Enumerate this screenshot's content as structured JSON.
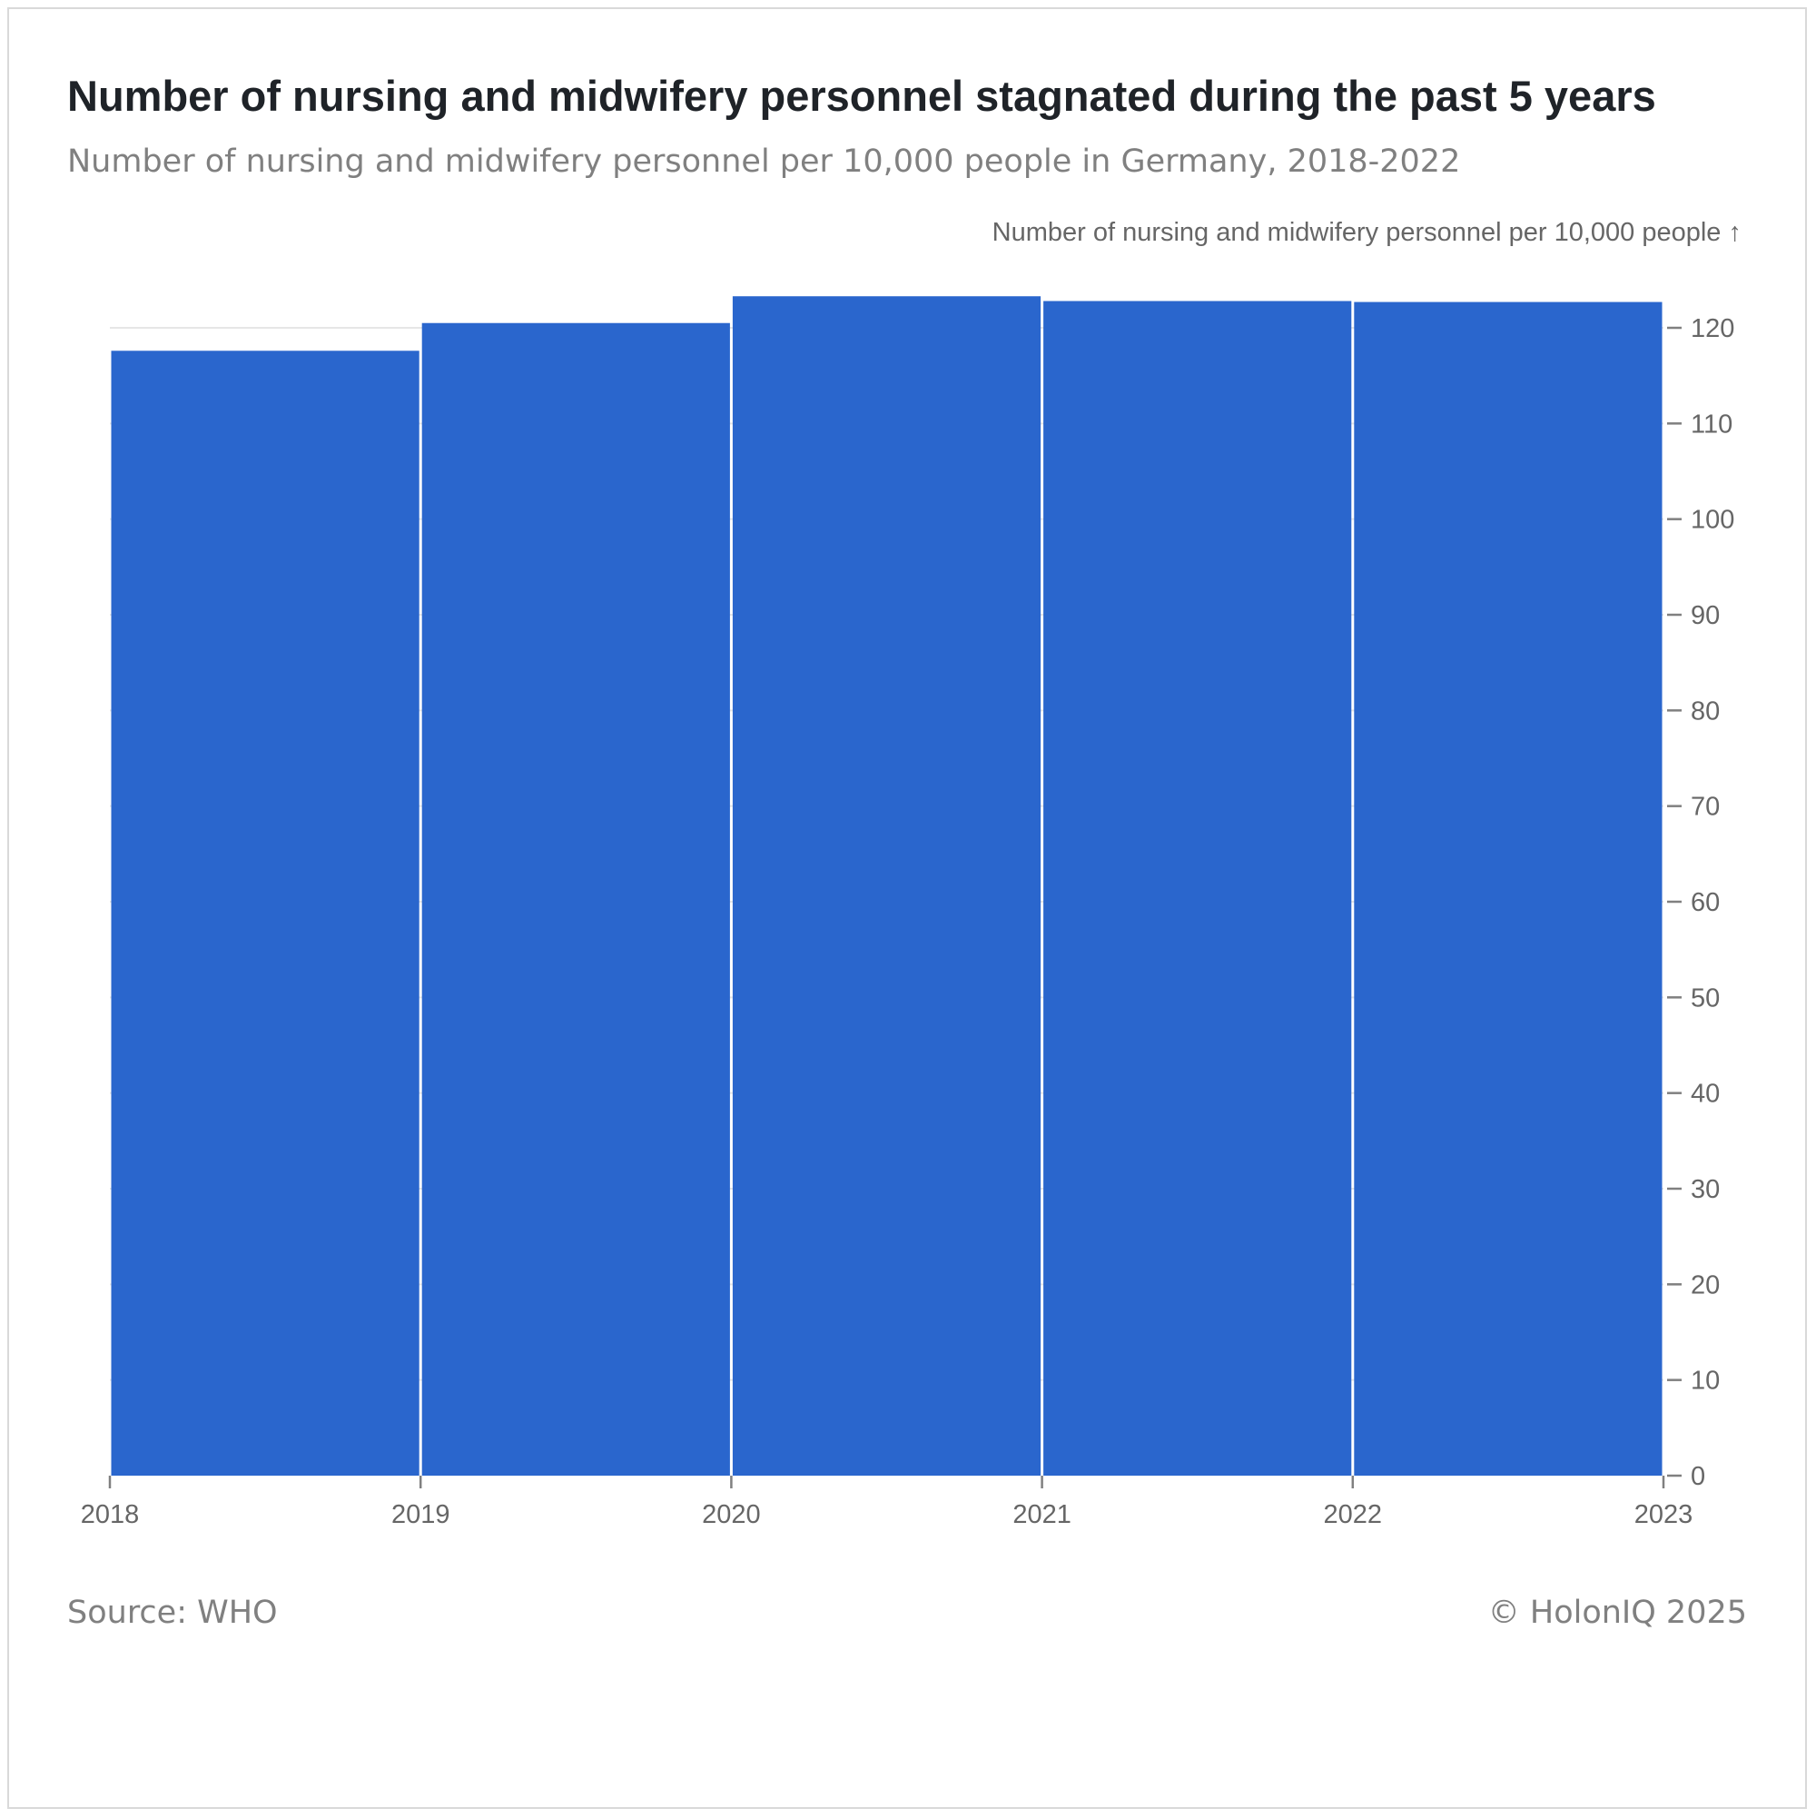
{
  "header": {
    "title": "Number of nursing and midwifery personnel stagnated during the past 5 years",
    "subtitle": "Number of nursing and midwifery personnel per 10,000 people in Germany, 2018-2022"
  },
  "footer": {
    "source": "Source: WHO",
    "copyright": "© HolonIQ 2025"
  },
  "colors": {
    "bar": "#2a66cd",
    "axis": "#808080",
    "grid": "#e6e6e6"
  },
  "chart_data": {
    "type": "bar",
    "categories": [
      "2018",
      "2019",
      "2020",
      "2021",
      "2022"
    ],
    "x_ticks": [
      "2018",
      "2019",
      "2020",
      "2021",
      "2022",
      "2023"
    ],
    "values": [
      117.6,
      120.5,
      123.3,
      122.8,
      122.7
    ],
    "ylabel": "Number of nursing and midwifery personnel per 10,000 people ↑",
    "ylim": [
      0,
      120
    ],
    "y_ticks": [
      0,
      10,
      20,
      30,
      40,
      50,
      60,
      70,
      80,
      90,
      100,
      110,
      120
    ],
    "y_axis_side": "right",
    "grid": true
  }
}
